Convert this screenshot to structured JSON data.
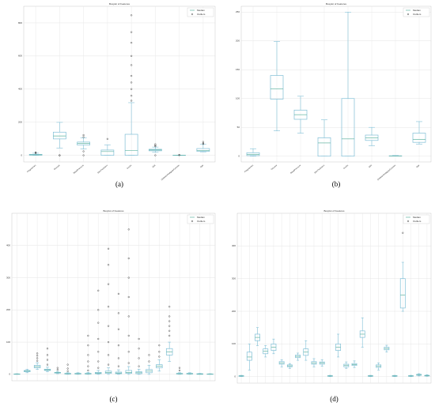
{
  "chart_data": [
    {
      "type": "box",
      "label": "(a)",
      "title": "Boxplot of Features",
      "legend": [
        "Median",
        "Outliers"
      ],
      "legend_position": "upper right",
      "grid": true,
      "box_color": "#7fbfd6",
      "median_color": "#5fb3a0",
      "categories": [
        "Pregnancies",
        "Glucose",
        "BloodPressure",
        "SkinThickness",
        "Insulin",
        "BMI",
        "DiabetesPedigreeFunction",
        "Age"
      ],
      "ylim": [
        -40,
        900
      ],
      "yticks": [
        0,
        200,
        400,
        600,
        800
      ],
      "boxes": [
        {
          "stats": [
            0,
            1,
            3,
            6,
            13
          ],
          "fliers": [
            14,
            15,
            17
          ]
        },
        {
          "stats": [
            44,
            99,
            117,
            140,
            199
          ],
          "fliers": [
            0,
            0
          ]
        },
        {
          "stats": [
            38,
            62,
            72,
            80,
            106
          ],
          "fliers": [
            0,
            24,
            110,
            122
          ]
        },
        {
          "stats": [
            0,
            0,
            23,
            32,
            63
          ],
          "fliers": [
            99
          ]
        },
        {
          "stats": [
            0,
            0,
            30,
            127,
            318
          ],
          "fliers": [
            330,
            360,
            400,
            440,
            480,
            545,
            600,
            680,
            744,
            846
          ]
        },
        {
          "stats": [
            18.2,
            27.3,
            32,
            36.6,
            50
          ],
          "fliers": [
            0,
            55,
            59,
            67
          ]
        },
        {
          "stats": [
            0.08,
            0.24,
            0.37,
            0.63,
            1.19
          ],
          "fliers": [
            1.5,
            2.4
          ]
        },
        {
          "stats": [
            21,
            24,
            29,
            41,
            66
          ],
          "fliers": [
            69,
            72,
            81
          ]
        }
      ]
    },
    {
      "type": "box",
      "label": "(b)",
      "title": "Boxplot of Features",
      "legend": [
        "Median",
        "Outliers"
      ],
      "legend_position": "upper right",
      "grid": true,
      "box_color": "#7fbfd6",
      "median_color": "#5fb3a0",
      "categories": [
        "Pregnancies",
        "Glucose",
        "BloodPressure",
        "SkinThickness",
        "Insulin",
        "BMI",
        "DiabetesPedigreeFunction",
        "Age"
      ],
      "ylim": [
        -10,
        260
      ],
      "yticks": [
        0,
        50,
        100,
        150,
        200,
        250
      ],
      "boxes": [
        {
          "stats": [
            0,
            1,
            3,
            6,
            13
          ],
          "fliers": []
        },
        {
          "stats": [
            44,
            99,
            117,
            140,
            199
          ],
          "fliers": []
        },
        {
          "stats": [
            40,
            64,
            72,
            80,
            104
          ],
          "fliers": []
        },
        {
          "stats": [
            0,
            0,
            23,
            32,
            63
          ],
          "fliers": []
        },
        {
          "stats": [
            0,
            0,
            30,
            100,
            250
          ],
          "fliers": []
        },
        {
          "stats": [
            18.2,
            27.3,
            32,
            36.6,
            50
          ],
          "fliers": []
        },
        {
          "stats": [
            0.08,
            0.24,
            0.37,
            0.63,
            1.19
          ],
          "fliers": []
        },
        {
          "stats": [
            21,
            24,
            29,
            40,
            60
          ],
          "fliers": []
        }
      ]
    },
    {
      "type": "box",
      "label": "(c)",
      "title": "Boxplot of Features",
      "legend": [
        "Median",
        "Outliers"
      ],
      "legend_position": "upper right",
      "grid": true,
      "box_color": "#7fbfd6",
      "median_color": "#5fb3a0",
      "categories": [
        null,
        null,
        null,
        null,
        null,
        null,
        null,
        null,
        null,
        null,
        null,
        null,
        null,
        null,
        null,
        null,
        null,
        null,
        null,
        null
      ],
      "ylim": [
        -20,
        500
      ],
      "yticks": [
        0,
        100,
        200,
        300,
        400
      ],
      "boxes": [
        {
          "stats": [
            0,
            0,
            1,
            1,
            2
          ],
          "fliers": []
        },
        {
          "stats": [
            5,
            8,
            10,
            12,
            16
          ],
          "fliers": []
        },
        {
          "stats": [
            15,
            20,
            24,
            28,
            36
          ],
          "fliers": [
            42,
            50,
            58,
            65
          ]
        },
        {
          "stats": [
            8,
            12,
            14,
            16,
            22
          ],
          "fliers": [
            30,
            45,
            60,
            80
          ]
        },
        {
          "stats": [
            2,
            4,
            5,
            6,
            9
          ],
          "fliers": [
            14,
            20
          ]
        },
        {
          "stats": [
            0,
            1,
            2,
            3,
            5
          ],
          "fliers": [
            10,
            18,
            30
          ]
        },
        {
          "stats": [
            0,
            1,
            2,
            3,
            5
          ],
          "fliers": []
        },
        {
          "stats": [
            0,
            1,
            2,
            3,
            6
          ],
          "fliers": [
            12,
            25,
            40,
            60,
            90,
            120
          ]
        },
        {
          "stats": [
            0,
            2,
            4,
            6,
            12
          ],
          "fliers": [
            20,
            40,
            70,
            110,
            160,
            200,
            260
          ]
        },
        {
          "stats": [
            0,
            3,
            6,
            10,
            20
          ],
          "fliers": [
            30,
            60,
            100,
            150,
            210,
            280,
            340,
            390
          ]
        },
        {
          "stats": [
            0,
            2,
            4,
            7,
            14
          ],
          "fliers": [
            25,
            50,
            90,
            140,
            190,
            250
          ]
        },
        {
          "stats": [
            0,
            3,
            6,
            12,
            24
          ],
          "fliers": [
            35,
            70,
            120,
            180,
            240,
            300,
            360,
            450
          ]
        },
        {
          "stats": [
            0,
            2,
            5,
            8,
            16
          ],
          "fliers": [
            25,
            50,
            80,
            110
          ]
        },
        {
          "stats": [
            0,
            5,
            10,
            15,
            28
          ],
          "fliers": [
            40,
            60
          ]
        },
        {
          "stats": [
            10,
            20,
            25,
            30,
            45
          ],
          "fliers": [
            55,
            70,
            90
          ]
        },
        {
          "stats": [
            40,
            60,
            70,
            80,
            100
          ],
          "fliers": [
            120,
            135,
            150,
            165,
            180,
            210
          ]
        },
        {
          "stats": [
            0,
            1,
            2,
            3,
            5
          ],
          "fliers": [
            12,
            20
          ]
        },
        {
          "stats": [
            0,
            1,
            2,
            3,
            5
          ],
          "fliers": []
        },
        {
          "stats": [
            0,
            0,
            1,
            2,
            3
          ],
          "fliers": []
        },
        {
          "stats": [
            0,
            0,
            1,
            1,
            2
          ],
          "fliers": []
        }
      ]
    },
    {
      "type": "box",
      "label": "(d)",
      "title": "Boxplot of Features",
      "legend": [
        "Median",
        "Outliers"
      ],
      "legend_position": "upper right",
      "grid": true,
      "box_color": "#7fbfd6",
      "median_color": "#5fb3a0",
      "categories": [
        null,
        null,
        null,
        null,
        null,
        null,
        null,
        null,
        null,
        null,
        null,
        null,
        null,
        null,
        null,
        null,
        null,
        null,
        null,
        null,
        null,
        null,
        null,
        null
      ],
      "ylim": [
        -20,
        500
      ],
      "yticks": [
        0,
        100,
        200,
        300,
        400
      ],
      "boxes": [
        {
          "stats": [
            0,
            1,
            2,
            3,
            4
          ],
          "fliers": []
        },
        {
          "stats": [
            20,
            50,
            60,
            75,
            100
          ],
          "fliers": []
        },
        {
          "stats": [
            95,
            110,
            120,
            130,
            150
          ],
          "fliers": []
        },
        {
          "stats": [
            60,
            70,
            78,
            85,
            95
          ],
          "fliers": []
        },
        {
          "stats": [
            70,
            80,
            90,
            100,
            115
          ],
          "fliers": []
        },
        {
          "stats": [
            30,
            38,
            42,
            46,
            52
          ],
          "fliers": []
        },
        {
          "stats": [
            25,
            30,
            33,
            36,
            40
          ],
          "fliers": []
        },
        {
          "stats": [
            50,
            58,
            62,
            66,
            72
          ],
          "fliers": []
        },
        {
          "stats": [
            50,
            65,
            75,
            85,
            110
          ],
          "fliers": []
        },
        {
          "stats": [
            30,
            38,
            42,
            46,
            55
          ],
          "fliers": []
        },
        {
          "stats": [
            32,
            38,
            42,
            45,
            52
          ],
          "fliers": []
        },
        {
          "stats": [
            0,
            1,
            2,
            3,
            4
          ],
          "fliers": []
        },
        {
          "stats": [
            60,
            80,
            90,
            100,
            130
          ],
          "fliers": []
        },
        {
          "stats": [
            25,
            30,
            34,
            38,
            45
          ],
          "fliers": []
        },
        {
          "stats": [
            28,
            34,
            37,
            40,
            48
          ],
          "fliers": []
        },
        {
          "stats": [
            90,
            120,
            130,
            140,
            180
          ],
          "fliers": []
        },
        {
          "stats": [
            0,
            1,
            2,
            3,
            4
          ],
          "fliers": []
        },
        {
          "stats": [
            20,
            28,
            32,
            36,
            42
          ],
          "fliers": []
        },
        {
          "stats": [
            75,
            82,
            86,
            90,
            96
          ],
          "fliers": []
        },
        {
          "stats": [
            0,
            1,
            2,
            3,
            4
          ],
          "fliers": []
        },
        {
          "stats": [
            200,
            210,
            250,
            300,
            350
          ],
          "fliers": [
            440
          ]
        },
        {
          "stats": [
            0,
            1,
            2,
            3,
            4
          ],
          "fliers": []
        },
        {
          "stats": [
            2,
            4,
            6,
            7,
            9
          ],
          "fliers": []
        },
        {
          "stats": [
            1,
            2,
            3,
            4,
            6
          ],
          "fliers": []
        }
      ]
    }
  ]
}
